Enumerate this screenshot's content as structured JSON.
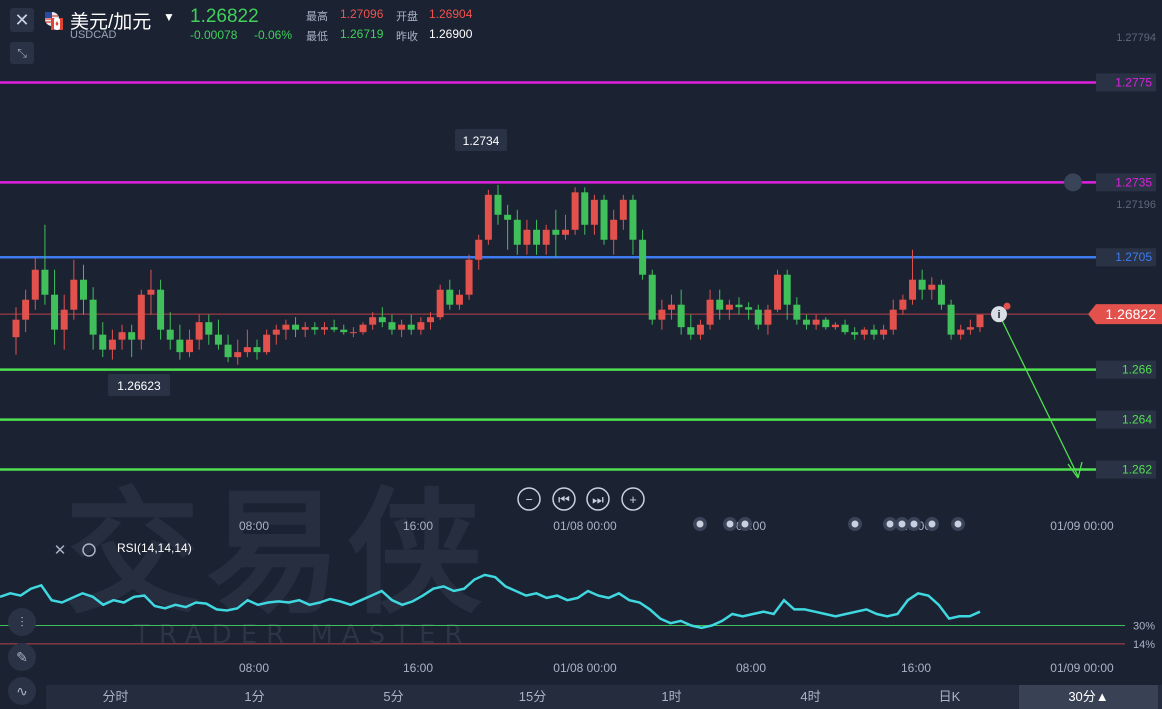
{
  "header": {
    "title": "美元/加元",
    "symbol": "USDCAD",
    "price": "1.26822",
    "change": "-0.00078",
    "change_pct": "-0.06%",
    "high_label": "最高",
    "high": "1.27096",
    "open_label": "开盘",
    "open": "1.26904",
    "low_label": "最低",
    "low": "1.26719",
    "prev_label": "昨收",
    "prev": "1.26900",
    "up_color": "#3fd15a",
    "down_color": "#f0524e"
  },
  "chart_data": {
    "type": "candlestick",
    "y_range": [
      1.2615,
      1.2796
    ],
    "y_tick_labels": [
      "1.27794",
      "1.27196"
    ],
    "x_tick_labels": [
      "08:00",
      "16:00",
      "01/08 00:00",
      "08:00",
      "16:00",
      "01/09 00:00"
    ],
    "last_price": "1.26822",
    "high_marker": "1.2734",
    "low_marker": "1.26623",
    "horizontal_lines": [
      {
        "value": 1.2775,
        "label": "1.2775",
        "color": "#e020e0"
      },
      {
        "value": 1.2735,
        "label": "1.2735",
        "color": "#e020e0"
      },
      {
        "value": 1.2705,
        "label": "1.2705",
        "color": "#3d7bf0"
      },
      {
        "value": 1.266,
        "label": "1.266",
        "color": "#4fe04f"
      },
      {
        "value": 1.264,
        "label": "1.264",
        "color": "#4fe04f"
      },
      {
        "value": 1.262,
        "label": "1.262",
        "color": "#4fe04f"
      }
    ],
    "candles": [
      [
        1.2673,
        1.2685,
        1.2666,
        1.268
      ],
      [
        1.268,
        1.2692,
        1.2675,
        1.2688
      ],
      [
        1.2688,
        1.2705,
        1.2684,
        1.27
      ],
      [
        1.27,
        1.2718,
        1.2686,
        1.269
      ],
      [
        1.269,
        1.27,
        1.267,
        1.2676
      ],
      [
        1.2676,
        1.269,
        1.2668,
        1.2684
      ],
      [
        1.2684,
        1.2704,
        1.268,
        1.2696
      ],
      [
        1.2696,
        1.2702,
        1.2682,
        1.2688
      ],
      [
        1.2688,
        1.2693,
        1.2668,
        1.2674
      ],
      [
        1.2674,
        1.2679,
        1.2665,
        1.2668
      ],
      [
        1.2668,
        1.2676,
        1.2664,
        1.2672
      ],
      [
        1.2672,
        1.2678,
        1.2668,
        1.2675
      ],
      [
        1.2675,
        1.2678,
        1.2665,
        1.2672
      ],
      [
        1.2672,
        1.2692,
        1.2668,
        1.269
      ],
      [
        1.269,
        1.27,
        1.2682,
        1.2692
      ],
      [
        1.2692,
        1.2696,
        1.2672,
        1.2676
      ],
      [
        1.2676,
        1.2683,
        1.2668,
        1.2672
      ],
      [
        1.2672,
        1.2678,
        1.2664,
        1.2667
      ],
      [
        1.2667,
        1.2676,
        1.2665,
        1.2672
      ],
      [
        1.2672,
        1.2682,
        1.2668,
        1.2679
      ],
      [
        1.2679,
        1.2682,
        1.267,
        1.2674
      ],
      [
        1.2674,
        1.268,
        1.2668,
        1.267
      ],
      [
        1.267,
        1.2674,
        1.2663,
        1.2665
      ],
      [
        1.2665,
        1.2672,
        1.2662,
        1.2667
      ],
      [
        1.2667,
        1.2676,
        1.2665,
        1.2669
      ],
      [
        1.2669,
        1.2672,
        1.2664,
        1.2667
      ],
      [
        1.2667,
        1.2676,
        1.2666,
        1.2674
      ],
      [
        1.2674,
        1.2678,
        1.267,
        1.2676
      ],
      [
        1.2676,
        1.268,
        1.2672,
        1.2678
      ],
      [
        1.2678,
        1.2681,
        1.2673,
        1.2676
      ],
      [
        1.2676,
        1.2679,
        1.2673,
        1.2677
      ],
      [
        1.2677,
        1.2679,
        1.2674,
        1.2676
      ],
      [
        1.2676,
        1.2679,
        1.2674,
        1.2677
      ],
      [
        1.2677,
        1.268,
        1.2675,
        1.2676
      ],
      [
        1.2676,
        1.2678,
        1.2674,
        1.2675
      ],
      [
        1.2675,
        1.2677,
        1.2673,
        1.2675
      ],
      [
        1.2675,
        1.2679,
        1.2674,
        1.2678
      ],
      [
        1.2678,
        1.2683,
        1.2676,
        1.2681
      ],
      [
        1.2681,
        1.2685,
        1.2677,
        1.2679
      ],
      [
        1.2679,
        1.2682,
        1.2674,
        1.2676
      ],
      [
        1.2676,
        1.268,
        1.2673,
        1.2678
      ],
      [
        1.2678,
        1.2682,
        1.2674,
        1.2676
      ],
      [
        1.2676,
        1.2681,
        1.2674,
        1.2679
      ],
      [
        1.2679,
        1.2683,
        1.2676,
        1.2681
      ],
      [
        1.2681,
        1.2694,
        1.268,
        1.2692
      ],
      [
        1.2692,
        1.2696,
        1.2684,
        1.2686
      ],
      [
        1.2686,
        1.2692,
        1.2684,
        1.269
      ],
      [
        1.269,
        1.2706,
        1.2688,
        1.2704
      ],
      [
        1.2704,
        1.2714,
        1.27,
        1.2712
      ],
      [
        1.2712,
        1.2732,
        1.271,
        1.273
      ],
      [
        1.273,
        1.2734,
        1.2718,
        1.2722
      ],
      [
        1.2722,
        1.2726,
        1.2708,
        1.272
      ],
      [
        1.272,
        1.2724,
        1.2706,
        1.271
      ],
      [
        1.271,
        1.272,
        1.2706,
        1.2716
      ],
      [
        1.2716,
        1.272,
        1.2706,
        1.271
      ],
      [
        1.271,
        1.2718,
        1.2706,
        1.2716
      ],
      [
        1.2716,
        1.2724,
        1.2705,
        1.2714
      ],
      [
        1.2714,
        1.2722,
        1.2712,
        1.2716
      ],
      [
        1.2716,
        1.2733,
        1.2714,
        1.2731
      ],
      [
        1.2731,
        1.2733,
        1.2714,
        1.2718
      ],
      [
        1.2718,
        1.273,
        1.2714,
        1.2728
      ],
      [
        1.2728,
        1.273,
        1.271,
        1.2712
      ],
      [
        1.2712,
        1.2724,
        1.2706,
        1.272
      ],
      [
        1.272,
        1.273,
        1.2716,
        1.2728
      ],
      [
        1.2728,
        1.273,
        1.2706,
        1.2712
      ],
      [
        1.2712,
        1.2716,
        1.2696,
        1.2698
      ],
      [
        1.2698,
        1.27,
        1.2678,
        1.268
      ],
      [
        1.268,
        1.2688,
        1.2676,
        1.2684
      ],
      [
        1.2684,
        1.269,
        1.268,
        1.2686
      ],
      [
        1.2686,
        1.2692,
        1.2674,
        1.2677
      ],
      [
        1.2677,
        1.2682,
        1.2672,
        1.2674
      ],
      [
        1.2674,
        1.268,
        1.2672,
        1.2678
      ],
      [
        1.2678,
        1.2692,
        1.2676,
        1.2688
      ],
      [
        1.2688,
        1.2692,
        1.268,
        1.2684
      ],
      [
        1.2684,
        1.2688,
        1.268,
        1.2686
      ],
      [
        1.2686,
        1.2689,
        1.2682,
        1.2685
      ],
      [
        1.2685,
        1.2687,
        1.268,
        1.2684
      ],
      [
        1.2684,
        1.2686,
        1.2676,
        1.2678
      ],
      [
        1.2678,
        1.2686,
        1.2674,
        1.2684
      ],
      [
        1.2684,
        1.27,
        1.2683,
        1.2698
      ],
      [
        1.2698,
        1.27,
        1.268,
        1.2686
      ],
      [
        1.2686,
        1.2689,
        1.2678,
        1.268
      ],
      [
        1.268,
        1.2682,
        1.2676,
        1.2678
      ],
      [
        1.2678,
        1.2682,
        1.2676,
        1.268
      ],
      [
        1.268,
        1.2681,
        1.2676,
        1.2677
      ],
      [
        1.2677,
        1.2679,
        1.2676,
        1.2678
      ],
      [
        1.2678,
        1.268,
        1.2674,
        1.2675
      ],
      [
        1.2675,
        1.2677,
        1.2672,
        1.2674
      ],
      [
        1.2674,
        1.2677,
        1.2672,
        1.2676
      ],
      [
        1.2676,
        1.2678,
        1.2672,
        1.2674
      ],
      [
        1.2674,
        1.2678,
        1.2672,
        1.2676
      ],
      [
        1.2676,
        1.2688,
        1.2674,
        1.2684
      ],
      [
        1.2684,
        1.269,
        1.2682,
        1.2688
      ],
      [
        1.2688,
        1.2708,
        1.2686,
        1.2696
      ],
      [
        1.2696,
        1.27,
        1.2688,
        1.2692
      ],
      [
        1.2692,
        1.2697,
        1.2688,
        1.2694
      ],
      [
        1.2694,
        1.2696,
        1.2684,
        1.2686
      ],
      [
        1.2686,
        1.2688,
        1.2672,
        1.2674
      ],
      [
        1.2674,
        1.2678,
        1.2672,
        1.2676
      ],
      [
        1.2676,
        1.268,
        1.2674,
        1.2677
      ],
      [
        1.2677,
        1.2681,
        1.2675,
        1.2682
      ]
    ],
    "rsi": {
      "label": "RSI(14,14,14)",
      "y_range": [
        0,
        100
      ],
      "levels": [
        {
          "value": 30,
          "label": "30%"
        },
        {
          "value": 14,
          "label": "14%"
        }
      ],
      "values": [
        55,
        58,
        56,
        62,
        65,
        52,
        50,
        54,
        58,
        55,
        48,
        52,
        50,
        55,
        56,
        47,
        45,
        48,
        46,
        50,
        49,
        44,
        43,
        45,
        52,
        48,
        50,
        51,
        50,
        52,
        48,
        50,
        53,
        51,
        48,
        52,
        56,
        60,
        52,
        48,
        51,
        56,
        62,
        64,
        60,
        62,
        70,
        74,
        72,
        64,
        60,
        56,
        58,
        54,
        56,
        52,
        54,
        60,
        56,
        54,
        58,
        52,
        50,
        44,
        36,
        32,
        34,
        30,
        28,
        30,
        34,
        40,
        38,
        40,
        42,
        40,
        52,
        44,
        44,
        42,
        40,
        38,
        40,
        42,
        44,
        40,
        38,
        40,
        52,
        58,
        56,
        48,
        36,
        38,
        38,
        42
      ]
    },
    "rsi_x_tick_labels": [
      "08:00",
      "16:00",
      "01/08 00:00",
      "08:00",
      "16:00",
      "01/09 00:00"
    ],
    "watermark": "交易侠",
    "watermark_sub": "TRADER MASTER"
  },
  "tabs": [
    "分时",
    "1分",
    "5分",
    "15分",
    "1时",
    "4时",
    "日K",
    "30分▲"
  ]
}
